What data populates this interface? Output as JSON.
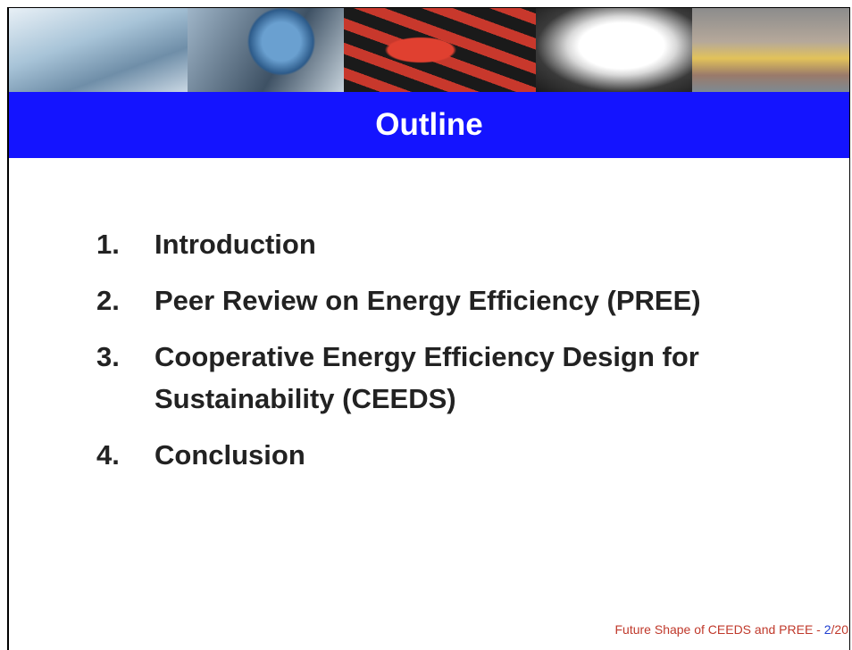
{
  "header": {
    "title": "Outline"
  },
  "items": [
    {
      "number": "1.",
      "text": "Introduction"
    },
    {
      "number": "2.",
      "text": "Peer Review on Energy Efficiency (PREE)"
    },
    {
      "number": "3.",
      "text": "Cooperative Energy Efficiency Design for Sustainability (CEEDS)"
    },
    {
      "number": "4.",
      "text": "Conclusion"
    }
  ],
  "footer": {
    "text": "Future Shape of CEEDS and PREE - ",
    "page": "2",
    "total": "/20"
  }
}
